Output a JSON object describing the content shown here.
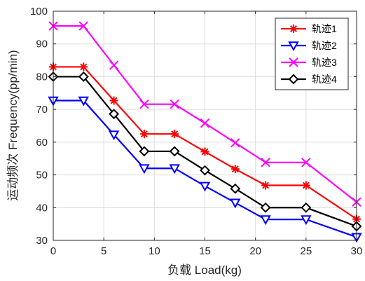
{
  "chart_data": {
    "type": "line",
    "xlabel": "负载 Load(kg)",
    "ylabel": "运动频次 Frequency(pp/min)",
    "x": [
      0,
      3,
      6,
      9,
      12,
      15,
      18,
      21,
      25,
      30
    ],
    "xlim": [
      0,
      30
    ],
    "ylim": [
      30,
      100
    ],
    "xticks": [
      0,
      5,
      10,
      15,
      20,
      25,
      30
    ],
    "yticks": [
      30,
      40,
      50,
      60,
      70,
      80,
      90,
      100
    ],
    "grid": true,
    "legend_position": "top-right",
    "series": [
      {
        "name": "轨迹1",
        "color": "#ff0000",
        "marker": "asterisk",
        "values": [
          83,
          83,
          72.7,
          62.5,
          62.5,
          57.1,
          51.8,
          46.8,
          46.8,
          36.5
        ]
      },
      {
        "name": "轨迹2",
        "color": "#0000ff",
        "marker": "triangle-down",
        "values": [
          72.7,
          72.7,
          62.3,
          52,
          52,
          46.6,
          41.5,
          36.4,
          36.4,
          31
        ]
      },
      {
        "name": "轨迹3",
        "color": "#ff00ff",
        "marker": "x",
        "values": [
          95.5,
          95.5,
          83.5,
          71.6,
          71.6,
          65.8,
          59.8,
          53.8,
          53.8,
          41.7
        ]
      },
      {
        "name": "轨迹4",
        "color": "#000000",
        "marker": "diamond",
        "values": [
          80,
          80,
          68.6,
          57.2,
          57.2,
          51.4,
          45.8,
          40,
          40,
          34.3
        ]
      }
    ]
  }
}
